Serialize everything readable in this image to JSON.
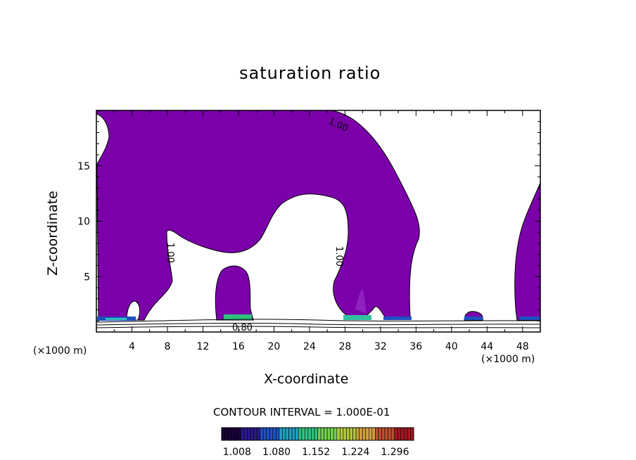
{
  "chart_data": {
    "type": "heatmap",
    "title": "saturation ratio",
    "xlabel": "X-coordinate",
    "ylabel": "Z-coordinate",
    "x_unit_label": "(×1000 m)",
    "xlim": [
      0,
      50
    ],
    "ylim": [
      0,
      20
    ],
    "x_ticks": [
      4,
      8,
      12,
      16,
      20,
      24,
      28,
      32,
      36,
      40,
      44,
      48
    ],
    "y_ticks": [
      5,
      10,
      15
    ],
    "fill_color": "#7b00aa",
    "contour_labels": [
      "1.00",
      "1.00",
      "1.00",
      "0.80"
    ],
    "contour_interval_text": "CONTOUR INTERVAL = 1.000E-01",
    "colorbar": {
      "tick_labels": [
        "1.008",
        "1.080",
        "1.152",
        "1.224",
        "1.296"
      ],
      "min": 0.98,
      "max": 1.33,
      "colors": [
        "#1a003a",
        "#2a1a8a",
        "#2050c0",
        "#20a0c0",
        "#30c080",
        "#70d050",
        "#b0c840",
        "#d0a040",
        "#c05030",
        "#a01820"
      ]
    }
  }
}
